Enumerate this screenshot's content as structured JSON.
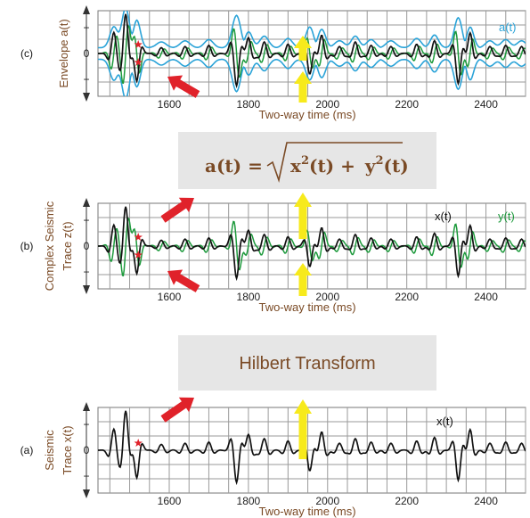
{
  "panels": [
    {
      "id": "c",
      "letter": "(c)",
      "ylabel_lines": [
        "Envelope a(t)"
      ],
      "xlabel": "Two-way time (ms)",
      "x_ticks": [
        "1600",
        "1800",
        "2000",
        "2200",
        "2400"
      ],
      "y_ticks": [
        "+",
        "0",
        "−"
      ],
      "curves": [
        {
          "name": "x(t)",
          "color": "#111111",
          "show_label": false
        },
        {
          "name": "y(t)",
          "color": "#1d9a3c",
          "show_label": false
        },
        {
          "name": "a(t)",
          "color": "#2aa3d8",
          "show_label": true
        }
      ]
    },
    {
      "id": "b",
      "letter": "(b)",
      "ylabel_lines": [
        "Complex Seismic",
        "Trace z(t)"
      ],
      "xlabel": "Two-way time (ms)",
      "x_ticks": [
        "1600",
        "1800",
        "2000",
        "2200",
        "2400"
      ],
      "y_ticks": [
        "+",
        "0",
        "−"
      ],
      "curves": [
        {
          "name": "x(t)",
          "color": "#111111",
          "show_label": true
        },
        {
          "name": "y(t)",
          "color": "#1d9a3c",
          "show_label": true
        }
      ]
    },
    {
      "id": "a",
      "letter": "(a)",
      "ylabel_lines": [
        "Seismic",
        "Trace x(t)"
      ],
      "xlabel": "Two-way time (ms)",
      "x_ticks": [
        "1600",
        "1800",
        "2000",
        "2200",
        "2400"
      ],
      "y_ticks": [
        "+",
        "0",
        "−"
      ],
      "curves": [
        {
          "name": "x(t)",
          "color": "#111111",
          "show_label": true
        }
      ]
    }
  ],
  "formula": {
    "lhs": "a(t) =",
    "term1_base": "x",
    "term1_exp": "2",
    "term1_arg": "(t) +",
    "term2_base": "y",
    "term2_exp": "2",
    "term2_arg": "(t)"
  },
  "transform_label": "Hilbert Transform",
  "colors": {
    "brown_text": "#7a4a25",
    "red_arrow": "#e0222a",
    "yellow_arrow": "#f7ea1c",
    "box_fill": "#e6e6e6",
    "envelope": "#2aa3d8",
    "quadrature": "#1d9a3c",
    "trace": "#111111"
  }
}
